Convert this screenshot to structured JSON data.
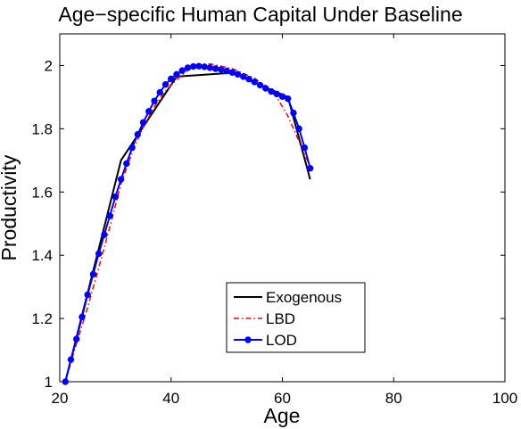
{
  "chart_data": {
    "type": "line",
    "title": "Age−specific Human Capital Under Baseline",
    "xlabel": "Age",
    "ylabel": "Productivity",
    "xlim": [
      20,
      100
    ],
    "ylim": [
      1.0,
      2.1
    ],
    "x_ticks": [
      20,
      40,
      60,
      80,
      100
    ],
    "x_tick_labels": [
      "20",
      "40",
      "60",
      "80",
      "100"
    ],
    "y_ticks": [
      1.0,
      1.2,
      1.4,
      1.6,
      1.8,
      2.0
    ],
    "y_tick_labels": [
      "1",
      "1.2",
      "1.4",
      "1.6",
      "1.8",
      "2"
    ],
    "grid": false,
    "legend_position": "lower-center",
    "series": [
      {
        "name": "Exogenous",
        "style": "solid",
        "color": "#000000",
        "marker": "none",
        "x": [
          21,
          31,
          41,
          51,
          61,
          65
        ],
        "y": [
          1.0,
          1.7,
          1.965,
          1.977,
          1.9,
          1.64
        ]
      },
      {
        "name": "LBD",
        "style": "dash-dot",
        "color": "#ff0000",
        "marker": "none",
        "x": [
          21,
          23,
          25,
          27,
          29,
          31,
          33,
          35,
          37,
          39,
          41,
          43,
          45,
          47,
          49,
          51,
          53,
          55,
          57,
          59,
          61,
          63,
          65
        ],
        "y": [
          1.0,
          1.12,
          1.235,
          1.36,
          1.49,
          1.625,
          1.725,
          1.805,
          1.87,
          1.92,
          1.955,
          1.985,
          2.0,
          2.005,
          1.998,
          1.99,
          1.975,
          1.96,
          1.935,
          1.9,
          1.84,
          1.76,
          1.68
        ]
      },
      {
        "name": "LOD",
        "style": "solid",
        "color": "#0000ff",
        "marker": "circle",
        "x": [
          21,
          22,
          23,
          24,
          25,
          26,
          27,
          28,
          29,
          30,
          31,
          32,
          33,
          34,
          35,
          36,
          37,
          38,
          39,
          40,
          41,
          42,
          43,
          44,
          45,
          46,
          47,
          48,
          49,
          50,
          51,
          52,
          53,
          54,
          55,
          56,
          57,
          58,
          59,
          60,
          61,
          62,
          63,
          64,
          65
        ],
        "y": [
          1.0,
          1.07,
          1.135,
          1.205,
          1.275,
          1.34,
          1.405,
          1.465,
          1.525,
          1.585,
          1.64,
          1.69,
          1.74,
          1.782,
          1.82,
          1.855,
          1.888,
          1.915,
          1.94,
          1.958,
          1.972,
          1.984,
          1.993,
          1.997,
          1.998,
          1.996,
          1.993,
          1.99,
          1.987,
          1.983,
          1.978,
          1.972,
          1.965,
          1.957,
          1.948,
          1.938,
          1.928,
          1.918,
          1.91,
          1.902,
          1.895,
          1.85,
          1.8,
          1.74,
          1.675
        ]
      }
    ]
  }
}
